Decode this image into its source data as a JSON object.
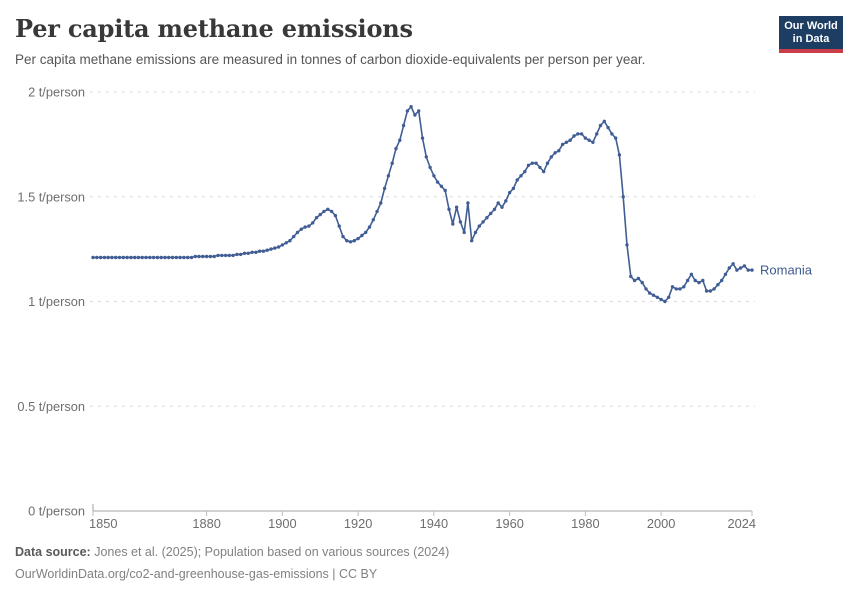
{
  "header": {
    "title": "Per capita methane emissions",
    "subtitle": "Per capita methane emissions are measured in tonnes of carbon dioxide-equivalents per person per year.",
    "logo": {
      "line1": "Our World",
      "line2": "in Data"
    }
  },
  "footer": {
    "source_label": "Data source:",
    "source_text": " Jones et al. (2025); Population based on various sources (2024)",
    "license_text": "OurWorldinData.org/co2-and-greenhouse-gas-emissions | CC BY"
  },
  "colors": {
    "line": "#405d94",
    "series_label": "#3d5a8e",
    "grid": "#dcdcdc",
    "axis": "#a3a3a3",
    "tick": "#bdbdbd",
    "axis_label": "#6e6e6e",
    "logo_bg": "#1d3d63",
    "logo_red": "#c93c4a"
  },
  "chart_data": {
    "type": "line",
    "title": "Per capita methane emissions",
    "unit": "t/person",
    "xlim": [
      1850,
      2024
    ],
    "ylim": [
      0,
      2
    ],
    "grid": "dashed-horizontal",
    "legend_position": "end-of-line",
    "x_ticks": [
      1850,
      1880,
      1900,
      1920,
      1940,
      1960,
      1980,
      2000,
      2024
    ],
    "y_ticks": [
      0,
      0.5,
      1,
      1.5,
      2
    ],
    "y_tick_labels": [
      "0 t/person",
      "0.5 t/person",
      "1 t/person",
      "1.5 t/person",
      "2 t/person"
    ],
    "series": [
      {
        "name": "Romania",
        "start_year": 1850,
        "values": [
          1.21,
          1.21,
          1.21,
          1.21,
          1.21,
          1.21,
          1.21,
          1.21,
          1.21,
          1.21,
          1.21,
          1.21,
          1.21,
          1.21,
          1.21,
          1.21,
          1.21,
          1.21,
          1.21,
          1.21,
          1.21,
          1.21,
          1.21,
          1.21,
          1.21,
          1.21,
          1.21,
          1.215,
          1.215,
          1.215,
          1.215,
          1.215,
          1.215,
          1.22,
          1.22,
          1.22,
          1.22,
          1.22,
          1.225,
          1.225,
          1.23,
          1.23,
          1.235,
          1.235,
          1.24,
          1.24,
          1.245,
          1.25,
          1.255,
          1.26,
          1.27,
          1.28,
          1.29,
          1.31,
          1.33,
          1.345,
          1.355,
          1.36,
          1.375,
          1.4,
          1.415,
          1.43,
          1.44,
          1.43,
          1.41,
          1.36,
          1.31,
          1.29,
          1.285,
          1.29,
          1.3,
          1.315,
          1.33,
          1.355,
          1.39,
          1.43,
          1.47,
          1.54,
          1.6,
          1.66,
          1.73,
          1.77,
          1.84,
          1.91,
          1.93,
          1.89,
          1.91,
          1.78,
          1.69,
          1.64,
          1.6,
          1.57,
          1.55,
          1.53,
          1.44,
          1.37,
          1.45,
          1.38,
          1.33,
          1.47,
          1.29,
          1.33,
          1.36,
          1.38,
          1.4,
          1.42,
          1.44,
          1.47,
          1.45,
          1.48,
          1.52,
          1.54,
          1.58,
          1.6,
          1.62,
          1.65,
          1.66,
          1.66,
          1.64,
          1.62,
          1.66,
          1.69,
          1.71,
          1.72,
          1.75,
          1.76,
          1.77,
          1.79,
          1.8,
          1.8,
          1.78,
          1.77,
          1.76,
          1.8,
          1.84,
          1.86,
          1.83,
          1.8,
          1.78,
          1.7,
          1.5,
          1.27,
          1.12,
          1.1,
          1.11,
          1.09,
          1.06,
          1.04,
          1.03,
          1.02,
          1.01,
          1.0,
          1.02,
          1.07,
          1.06,
          1.06,
          1.07,
          1.1,
          1.13,
          1.1,
          1.09,
          1.1,
          1.05,
          1.05,
          1.06,
          1.08,
          1.1,
          1.13,
          1.16,
          1.18,
          1.15,
          1.16,
          1.17,
          1.15,
          1.15
        ]
      }
    ]
  }
}
